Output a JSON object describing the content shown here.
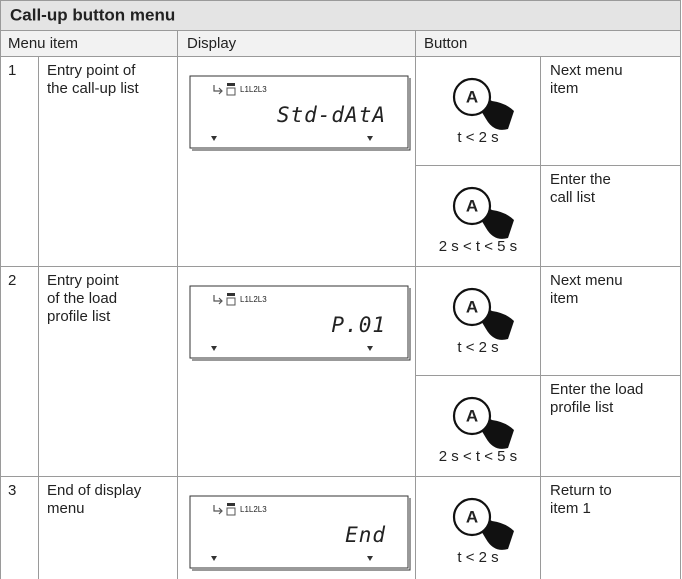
{
  "header": {
    "title": "Call-up button menu"
  },
  "table": {
    "columns": [
      "Menu item",
      "Display",
      "Button"
    ],
    "button_key": "A",
    "rows": [
      {
        "number": "1",
        "label_lines": [
          "Entry point of",
          "the call-up list"
        ],
        "display": {
          "indicators": "L1L2L3",
          "text": "Std-dAtA"
        },
        "actions": [
          {
            "timing": "t < 2 s",
            "action_lines": [
              "Next menu",
              "item"
            ]
          },
          {
            "timing": "2 s < t < 5 s",
            "action_lines": [
              "Enter the",
              "call list"
            ]
          }
        ]
      },
      {
        "number": "2",
        "label_lines": [
          "Entry point",
          "of the load",
          "profile list"
        ],
        "display": {
          "indicators": "L1L2L3",
          "text": "P.01"
        },
        "actions": [
          {
            "timing": "t < 2 s",
            "action_lines": [
              "Next menu",
              "item"
            ]
          },
          {
            "timing": "2 s < t < 5 s",
            "action_lines": [
              "Enter the load",
              "profile list"
            ]
          }
        ]
      },
      {
        "number": "3",
        "label_lines": [
          "End of display",
          "menu"
        ],
        "display": {
          "indicators": "L1L2L3",
          "text": "End"
        },
        "actions": [
          {
            "timing": "t < 2 s",
            "action_lines": [
              "Return to",
              "item 1"
            ]
          }
        ]
      }
    ]
  }
}
